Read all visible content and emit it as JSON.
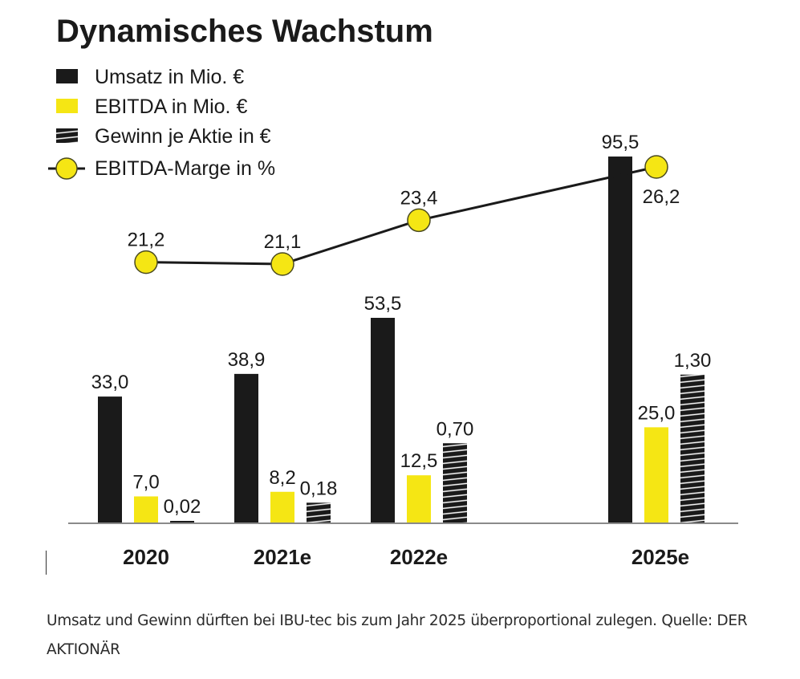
{
  "chart_data": {
    "type": "bar",
    "title": "Dynamisches Wachstum",
    "categories": [
      "2020",
      "2021e",
      "2022e",
      "2025e"
    ],
    "series": [
      {
        "name": "Umsatz in Mio. €",
        "kind": "bar",
        "color": "#1a1a1a",
        "values": [
          33.0,
          38.9,
          53.5,
          95.5
        ],
        "labels": [
          "33,0",
          "38,9",
          "53,5",
          "95,5"
        ]
      },
      {
        "name": "EBITDA in Mio. €",
        "kind": "bar",
        "color": "#f5e614",
        "values": [
          7.0,
          8.2,
          12.5,
          25.0
        ],
        "labels": [
          "7,0",
          "8,2",
          "12,5",
          "25,0"
        ]
      },
      {
        "name": "Gewinn je Aktie in €",
        "kind": "bar-hatched",
        "color": "#1a1a1a",
        "values": [
          0.02,
          0.18,
          0.7,
          1.3
        ],
        "labels": [
          "0,02",
          "0,18",
          "0,70",
          "1,30"
        ]
      },
      {
        "name": "EBITDA-Marge in %",
        "kind": "line",
        "color": "#f5e614",
        "values": [
          21.2,
          21.1,
          23.4,
          26.2
        ],
        "labels": [
          "21,2",
          "21,1",
          "23,4",
          "26,2"
        ]
      }
    ],
    "legend": {
      "position": "top-left"
    },
    "xlabel": "",
    "ylabel": "",
    "grid": false
  },
  "caption": "Umsatz und Gewinn dürften bei IBU-tec bis zum Jahr 2025 überproportional zulegen. Quelle: DER AKTIONÄR"
}
